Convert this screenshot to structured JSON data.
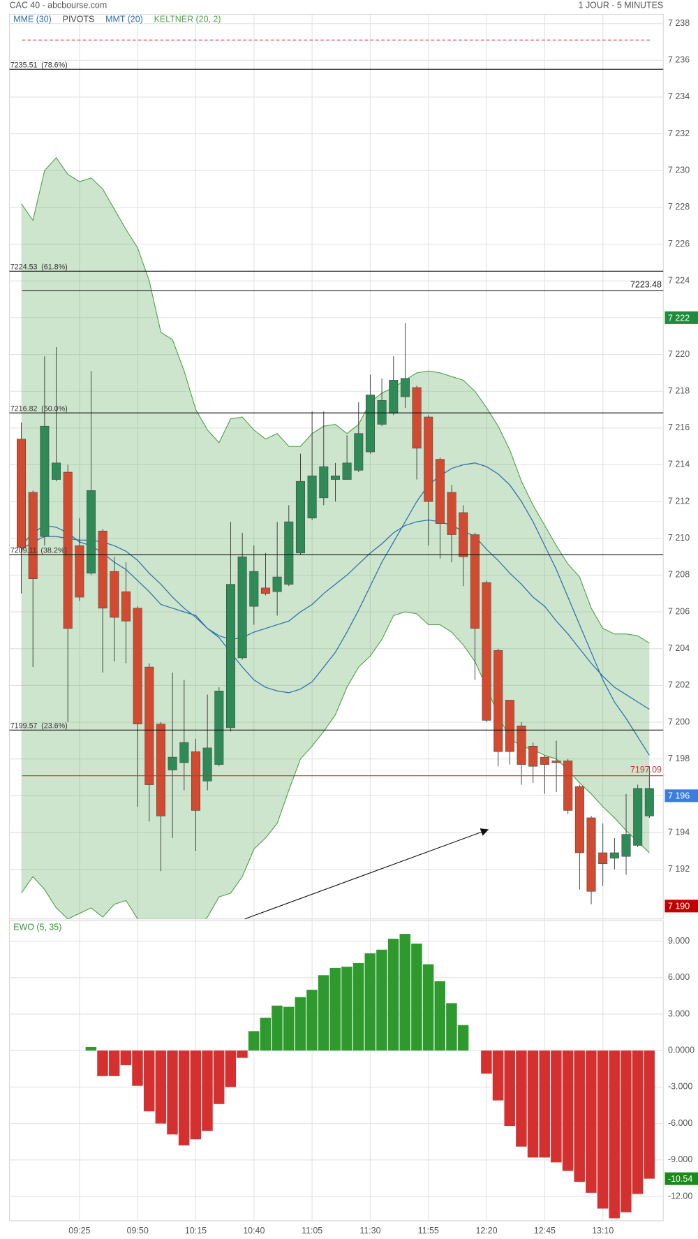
{
  "header": {
    "title": "CAC 40 - abcbourse.com",
    "period": "1 JOUR - 5 MINUTES"
  },
  "chart_data": [
    {
      "type": "candlestick",
      "categories": [
        null,
        null,
        null,
        null,
        null,
        "09:25",
        null,
        null,
        null,
        null,
        "09:50",
        null,
        null,
        null,
        null,
        "10:15",
        null,
        null,
        null,
        null,
        "10:40",
        null,
        null,
        null,
        null,
        "11:05",
        null,
        null,
        null,
        null,
        "11:30",
        null,
        null,
        null,
        null,
        "11:55",
        null,
        null,
        null,
        null,
        "12:20",
        null,
        null,
        null,
        null,
        "12:45",
        null,
        null,
        null,
        null,
        "13:10",
        null,
        null,
        null,
        null
      ],
      "open": [
        7215.4,
        7212.5,
        7210.1,
        7213.2,
        7213.6,
        7209.6,
        7208.1,
        7210.4,
        7208.2,
        7207.1,
        7206.2,
        7203.0,
        7199.9,
        7197.4,
        7197.8,
        7198.4,
        7196.8,
        7197.7,
        7199.7,
        7203.5,
        7206.3,
        7207.3,
        7207.1,
        7207.5,
        7209.2,
        7211.1,
        7212.2,
        7213.2,
        7213.2,
        7213.7,
        7214.7,
        7216.2,
        7216.8,
        7217.7,
        7218.2,
        7216.6,
        7214.3,
        7212.5,
        7211.4,
        7210.2,
        7207.6,
        7203.9,
        7201.2,
        7199.8,
        7198.7,
        7198.1,
        7197.9,
        7197.9,
        7196.5,
        7194.8,
        7192.9,
        7192.6,
        7192.7,
        7193.3,
        7194.9
      ],
      "high": [
        7216.3,
        7212.6,
        7219.9,
        7220.4,
        7214.0,
        7211.1,
        7219.1,
        7210.5,
        7209.0,
        7208.7,
        7206.3,
        7203.2,
        7200.0,
        7202.7,
        7202.3,
        7199.1,
        7201.5,
        7201.9,
        7210.9,
        7210.3,
        7209.6,
        7209.2,
        7210.9,
        7211.8,
        7214.6,
        7216.9,
        7216.9,
        7214.1,
        7215.6,
        7217.4,
        7218.9,
        7218.7,
        7219.9,
        7221.7,
        7218.3,
        7216.7,
        7214.4,
        7212.9,
        7211.8,
        7210.3,
        7207.7,
        7204.0,
        7201.2,
        7200.0,
        7198.9,
        7198.2,
        7199.0,
        7198.0,
        7196.6,
        7194.9,
        7194.5,
        7193.7,
        7196.1,
        7196.6,
        7197.6
      ],
      "low": [
        7207.0,
        7203.0,
        7209.6,
        7213.1,
        7200.0,
        7206.6,
        7208.0,
        7202.7,
        7203.3,
        7203.2,
        7195.4,
        7194.6,
        7191.9,
        7193.7,
        7196.3,
        7193.0,
        7196.3,
        7197.6,
        7199.5,
        7203.4,
        7205.3,
        7206.9,
        7205.8,
        7207.4,
        7209.1,
        7211.0,
        7211.8,
        7212.0,
        7213.2,
        7213.6,
        7214.6,
        7216.1,
        7216.7,
        7217.1,
        7213.2,
        7209.6,
        7208.9,
        7208.7,
        7207.4,
        7202.3,
        7200.0,
        7197.6,
        7197.7,
        7196.6,
        7196.7,
        7196.1,
        7196.2,
        7195.0,
        7190.9,
        7190.1,
        7191.1,
        7192.0,
        7191.7,
        7193.2,
        7194.8
      ],
      "close": [
        7209.5,
        7207.8,
        7216.1,
        7214.1,
        7205.1,
        7206.8,
        7212.6,
        7206.2,
        7205.7,
        7205.5,
        7199.9,
        7196.6,
        7194.9,
        7198.1,
        7198.9,
        7195.2,
        7198.6,
        7201.7,
        7207.5,
        7209.0,
        7208.2,
        7207.0,
        7207.9,
        7210.9,
        7213.1,
        7213.4,
        7213.9,
        7213.4,
        7214.1,
        7215.7,
        7217.8,
        7217.5,
        7218.6,
        7218.7,
        7214.9,
        7212.0,
        7210.8,
        7210.2,
        7209.0,
        7205.1,
        7200.1,
        7198.4,
        7198.4,
        7197.7,
        7197.6,
        7197.7,
        7197.8,
        7195.2,
        7192.9,
        7190.8,
        7192.3,
        7192.9,
        7193.9,
        7196.4,
        7196.4
      ],
      "up_color": "#2e8b57",
      "down_color": "#d24a30",
      "series": [
        {
          "name": "MME (30)",
          "type": "line",
          "color": "#2a6fb0",
          "values": [
            7209.4,
            7209.8,
            7210.1,
            7210.1,
            7210.0,
            7209.9,
            7209.9,
            7209.8,
            7209.6,
            7209.3,
            7208.8,
            7208.1,
            7207.5,
            7206.8,
            7206.2,
            7205.7,
            7205.1,
            7204.7,
            7204.5,
            7204.6,
            7204.9,
            7205.1,
            7205.3,
            7205.5,
            7206.0,
            7206.4,
            7207.0,
            7207.5,
            7208.0,
            7208.6,
            7209.2,
            7209.7,
            7210.3,
            7210.7,
            7210.9,
            7211.0,
            7210.9,
            7210.7,
            7210.4,
            7210.1,
            7209.4,
            7208.8,
            7208.1,
            7207.5,
            7206.8,
            7206.3,
            7205.5,
            7204.8,
            7204.0,
            7203.2,
            7202.5,
            7201.9,
            7201.5,
            7201.1,
            7200.7
          ]
        },
        {
          "name": "PIVOTS",
          "type": "levels",
          "color": "#444444",
          "levels": [
            {
              "price": 7235.51,
              "ratio": "(78.6%)"
            },
            {
              "price": 7224.53,
              "ratio": "(61.8%)"
            },
            {
              "price": 7216.82,
              "ratio": "(50.0%)"
            },
            {
              "price": 7209.11,
              "ratio": "(38.2%)"
            },
            {
              "price": 7199.57,
              "ratio": "(23.6%)"
            }
          ]
        },
        {
          "name": "MMT (20)",
          "type": "line",
          "color": "#2a6fb0",
          "values": [
            7209.6,
            7210.3,
            7210.7,
            7210.6,
            7210.3,
            7209.8,
            7209.6,
            7209.2,
            7208.7,
            7208.3,
            7207.7,
            7207.1,
            7206.4,
            7206.2,
            7206.0,
            7205.8,
            7205.1,
            7204.6,
            7203.8,
            7203.0,
            7202.3,
            7201.9,
            7201.7,
            7201.6,
            7201.8,
            7202.2,
            7203.0,
            7203.8,
            7204.9,
            7206.1,
            7207.4,
            7208.7,
            7209.8,
            7210.9,
            7212.0,
            7212.9,
            7213.4,
            7213.8,
            7214.0,
            7214.1,
            7213.9,
            7213.5,
            7212.9,
            7212.0,
            7210.9,
            7209.6,
            7208.3,
            7206.8,
            7205.3,
            7203.8,
            7202.3,
            7201.1,
            7200.2,
            7199.2,
            7198.2
          ]
        },
        {
          "name": "KELTNER (20, 2)",
          "type": "band",
          "color": "#4fa34a",
          "upper": [
            7228.2,
            7227.3,
            7230.0,
            7230.7,
            7229.8,
            7229.4,
            7229.6,
            7229.0,
            7227.9,
            7226.8,
            7225.8,
            7224.0,
            7221.2,
            7220.8,
            7219.1,
            7217.0,
            7215.9,
            7215.2,
            7216.5,
            7216.6,
            7215.9,
            7215.4,
            7215.7,
            7215.0,
            7215.0,
            7215.7,
            7216.1,
            7216.2,
            7215.7,
            7216.2,
            7217.4,
            7217.9,
            7218.2,
            7218.6,
            7219.0,
            7219.1,
            7219.0,
            7218.8,
            7218.6,
            7218.0,
            7217.1,
            7216.1,
            7214.8,
            7213.1,
            7211.8,
            7210.7,
            7209.6,
            7208.6,
            7207.9,
            7206.2,
            7205.1,
            7204.8,
            7204.8,
            7204.7,
            7204.3
          ],
          "lower": [
            7190.7,
            7191.6,
            7190.9,
            7189.9,
            7189.3,
            7189.6,
            7189.9,
            7189.4,
            7190.1,
            7190.3,
            7189.3,
            7189.0,
            7188.8,
            7188.8,
            7188.8,
            7188.8,
            7189.4,
            7190.5,
            7190.7,
            7191.6,
            7193.1,
            7193.7,
            7194.5,
            7196.3,
            7198.0,
            7198.7,
            7199.5,
            7200.4,
            7201.9,
            7203.0,
            7203.6,
            7204.5,
            7205.8,
            7206.0,
            7205.9,
            7205.3,
            7205.3,
            7204.9,
            7204.2,
            7203.3,
            7201.9,
            7200.4,
            7199.1,
            7198.7,
            7198.5,
            7198.2,
            7198.0,
            7197.4,
            7196.7,
            7196.1,
            7195.4,
            7194.8,
            7194.1,
            7193.5,
            7192.9
          ]
        }
      ],
      "lines": [
        {
          "value": 7223.48,
          "color": "#222222",
          "labeled": true
        },
        {
          "value": 7197.09,
          "color": "#d03030",
          "labeled": true
        },
        {
          "value": 7237.1,
          "color": "#e03030",
          "dashed": true
        }
      ],
      "badges": [
        {
          "value": 7222,
          "label": "7 222",
          "color": "#1e8c3c"
        },
        {
          "value": 7196,
          "label": "7 196",
          "color": "#3b7ddd"
        },
        {
          "value": 7190,
          "label": "7 190",
          "color": "#c00000"
        }
      ],
      "ylim": [
        7189.3,
        7238.5
      ],
      "yticks": [
        {
          "value": 7192,
          "label": "7 192"
        },
        {
          "value": 7194,
          "label": "7 194"
        },
        {
          "value": 7196,
          "label": "7 196"
        },
        {
          "value": 7198,
          "label": "7 198"
        },
        {
          "value": 7200,
          "label": "7 200"
        },
        {
          "value": 7202,
          "label": "7 202"
        },
        {
          "value": 7204,
          "label": "7 204"
        },
        {
          "value": 7206,
          "label": "7 206"
        },
        {
          "value": 7208,
          "label": "7 208"
        },
        {
          "value": 7210,
          "label": "7 210"
        },
        {
          "value": 7212,
          "label": "7 212"
        },
        {
          "value": 7214,
          "label": "7 214"
        },
        {
          "value": 7216,
          "label": "7 216"
        },
        {
          "value": 7218,
          "label": "7 218"
        },
        {
          "value": 7220,
          "label": "7 220"
        },
        {
          "value": 7222,
          "label": "7 222"
        },
        {
          "value": 7224,
          "label": "7 224"
        },
        {
          "value": 7226,
          "label": "7 226"
        },
        {
          "value": 7228,
          "label": "7 228"
        },
        {
          "value": 7230,
          "label": "7 230"
        },
        {
          "value": 7232,
          "label": "7 232"
        },
        {
          "value": 7234,
          "label": "7 234"
        },
        {
          "value": 7236,
          "label": "7 236"
        },
        {
          "value": 7238,
          "label": "7 238"
        }
      ],
      "grid": true
    },
    {
      "type": "bar",
      "title": "EWO (5, 35)",
      "values": [
        null,
        null,
        null,
        null,
        null,
        null,
        0.3,
        -2.1,
        -2.1,
        -1.2,
        -2.9,
        -5.0,
        -6.0,
        -6.9,
        -7.8,
        -7.3,
        -6.6,
        -4.4,
        -3.0,
        -0.6,
        1.6,
        2.7,
        3.7,
        3.6,
        4.4,
        5.0,
        6.2,
        6.8,
        6.9,
        7.2,
        8.0,
        8.3,
        9.2,
        9.6,
        8.8,
        7.1,
        5.7,
        3.9,
        2.1,
        null,
        -1.9,
        -4.1,
        -6.2,
        -7.9,
        -8.8,
        -8.8,
        -9.2,
        -9.9,
        -10.8,
        -11.7,
        -13.0,
        -13.8,
        -13.3,
        -11.8,
        -10.54
      ],
      "pos_color": "#2e9a2e",
      "neg_color": "#d43030",
      "badge": {
        "value": -10.54,
        "color": "#1a8a1a"
      },
      "ylim": [
        -14,
        10.7
      ],
      "yticks": [
        {
          "value": 9,
          "label": "9.000"
        },
        {
          "value": 6,
          "label": "6.000"
        },
        {
          "value": 3,
          "label": "3.000"
        },
        {
          "value": 0,
          "label": "0.0000"
        },
        {
          "value": -3,
          "label": "-3.000"
        },
        {
          "value": -6,
          "label": "-6.000"
        },
        {
          "value": -9,
          "label": "-9.000"
        },
        {
          "value": -12,
          "label": "-12.00"
        }
      ],
      "grid": true
    }
  ]
}
